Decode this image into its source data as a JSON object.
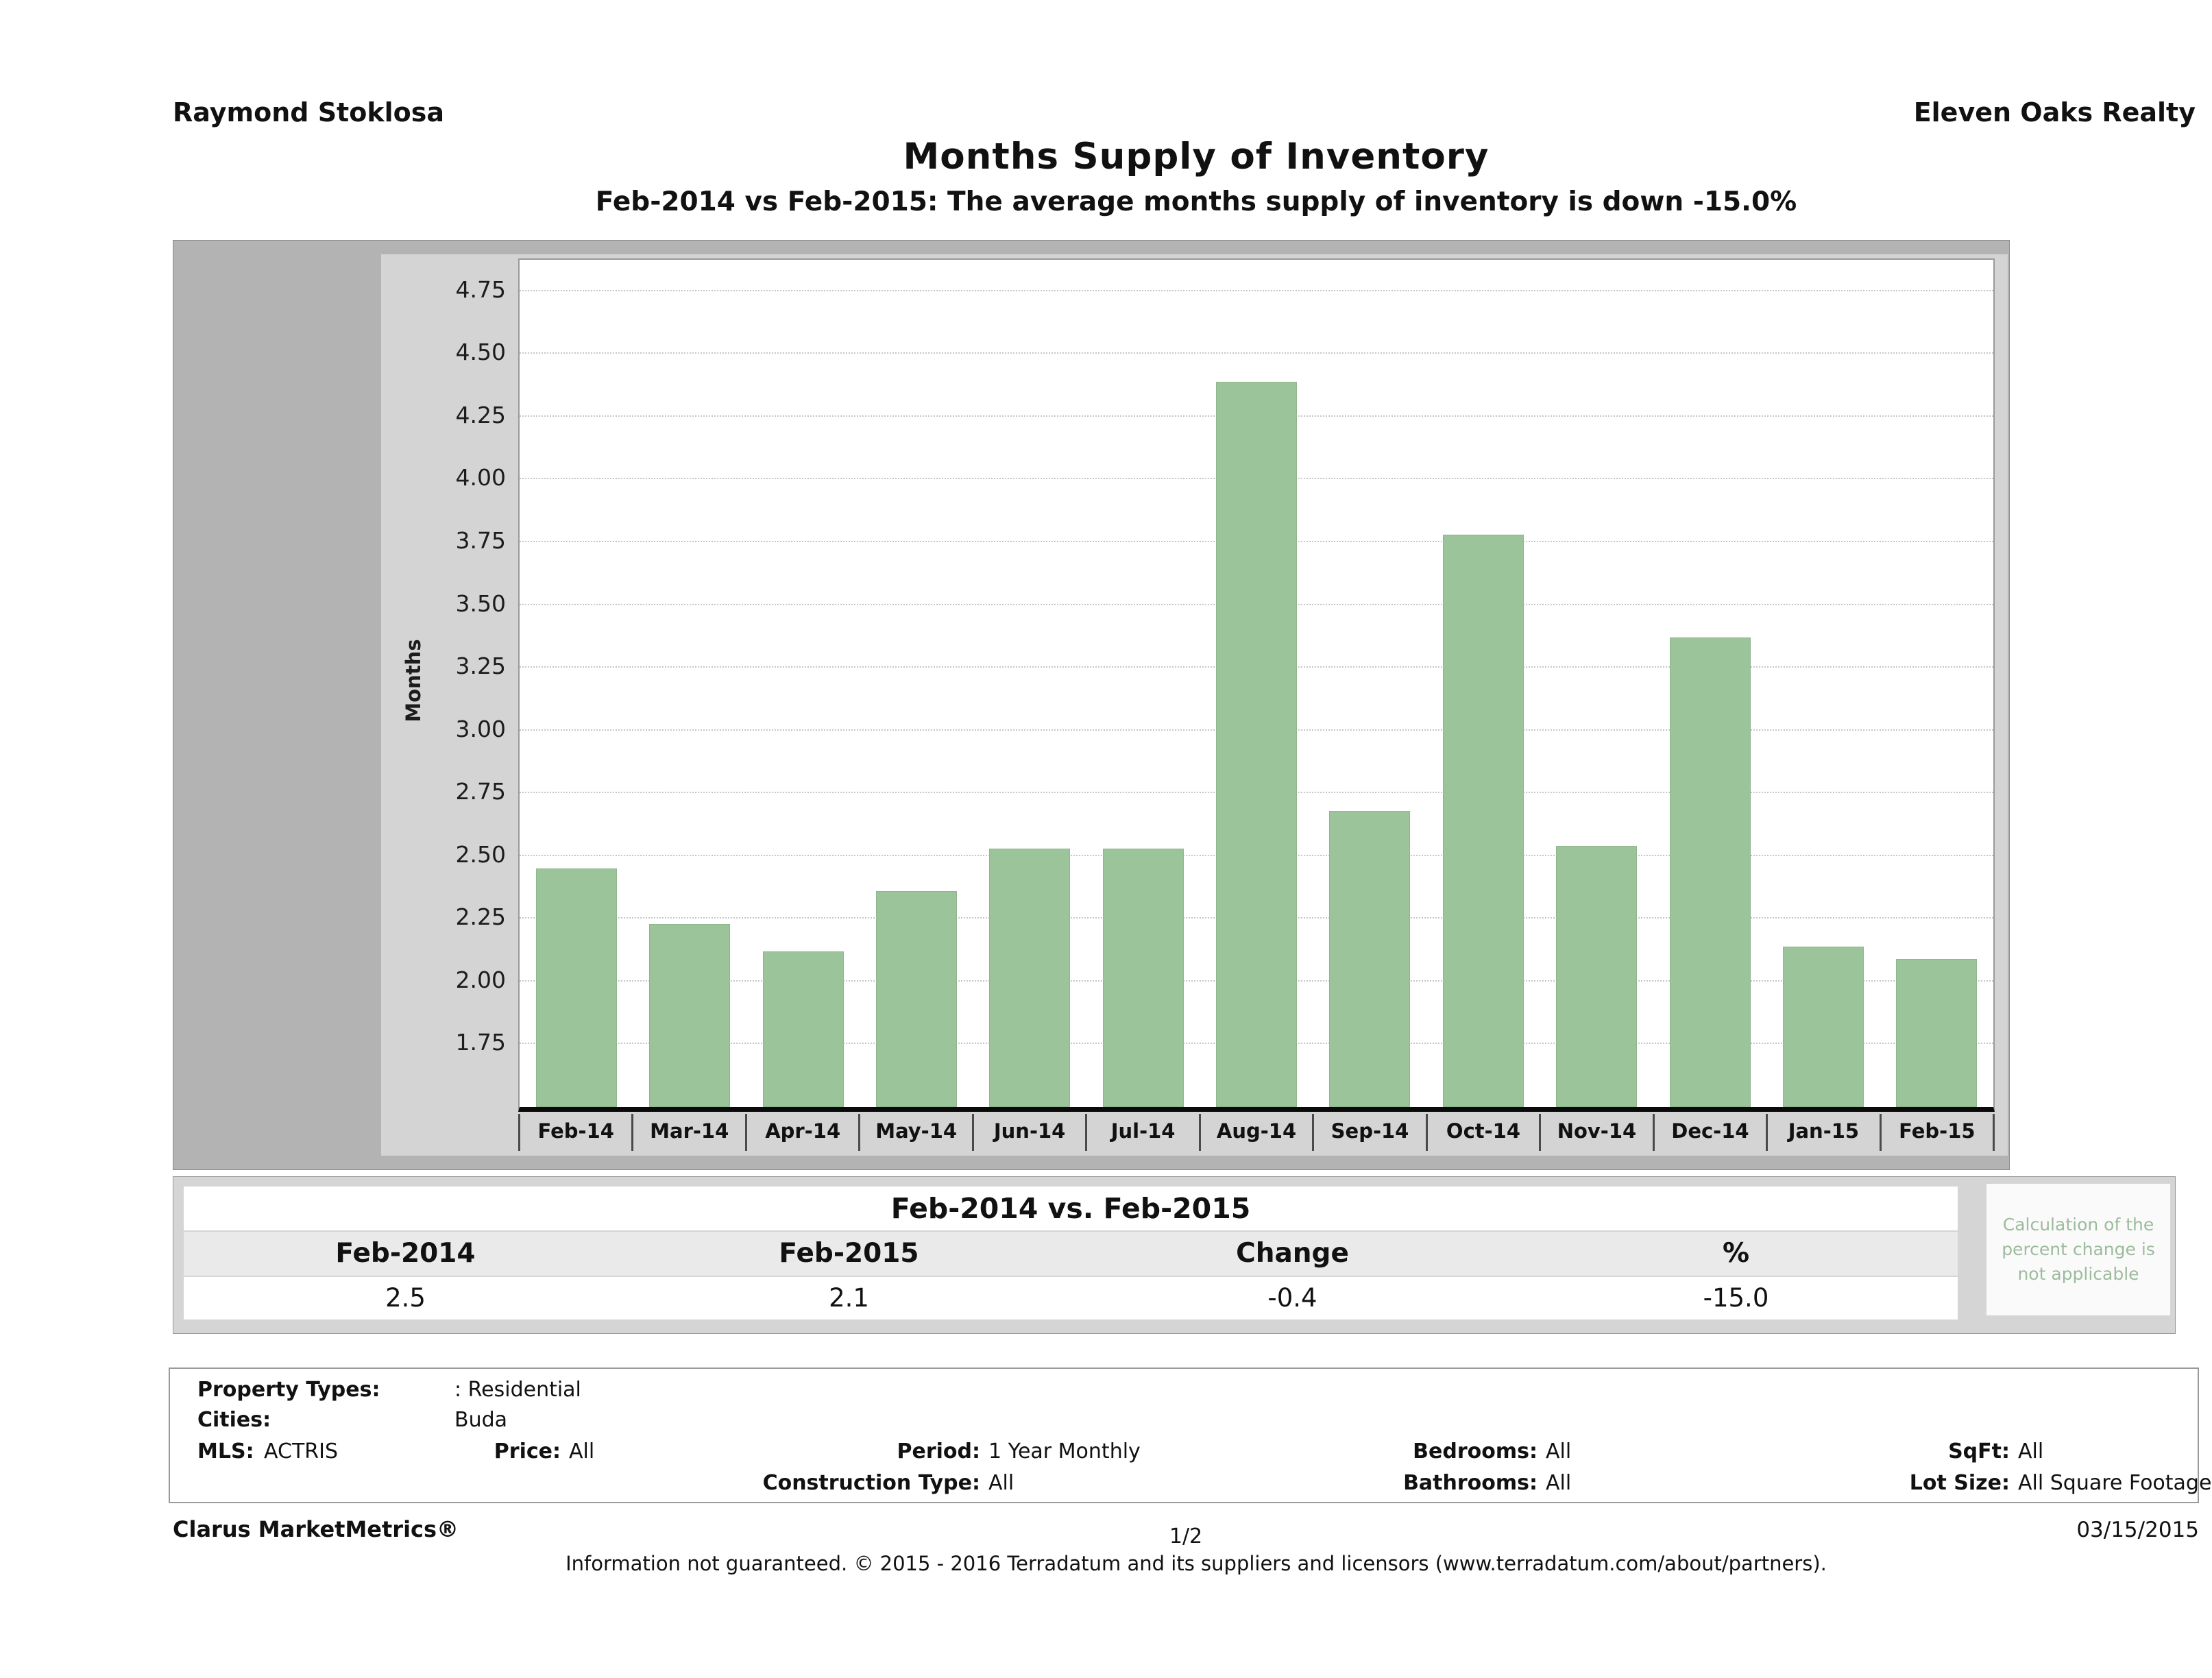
{
  "header": {
    "agent": "Raymond Stoklosa",
    "brokerage": "Eleven Oaks Realty"
  },
  "chart_data": {
    "type": "bar",
    "title": "Months Supply of Inventory",
    "subtitle": "Feb-2014 vs Feb-2015: The average months supply of inventory is down -15.0%",
    "ylabel": "Months",
    "xlabel": "",
    "categories": [
      "Feb-14",
      "Mar-14",
      "Apr-14",
      "May-14",
      "Jun-14",
      "Jul-14",
      "Aug-14",
      "Sep-14",
      "Oct-14",
      "Nov-14",
      "Dec-14",
      "Jan-15",
      "Feb-15"
    ],
    "values": [
      2.45,
      2.23,
      2.12,
      2.36,
      2.53,
      2.53,
      4.39,
      2.68,
      3.78,
      2.54,
      3.37,
      2.14,
      2.09
    ],
    "ylim": [
      1.5,
      4.875
    ],
    "yticks": [
      1.75,
      2.0,
      2.25,
      2.5,
      2.75,
      3.0,
      3.25,
      3.5,
      3.75,
      4.0,
      4.25,
      4.5,
      4.75
    ],
    "bar_color": "#9cc49a",
    "grid": "dotted-horizontal",
    "legend": "none"
  },
  "summary": {
    "title": "Feb-2014 vs. Feb-2015",
    "columns": [
      "Feb-2014",
      "Feb-2015",
      "Change",
      "%"
    ],
    "values": [
      "2.5",
      "2.1",
      "-0.4",
      "-15.0"
    ],
    "note": "Calculation of the percent change is not applicable"
  },
  "filters": {
    "property_types_label": "Property Types:",
    "property_types": ": Residential",
    "cities_label": "Cities:",
    "cities": "Buda",
    "mls_label": "MLS:",
    "mls": "ACTRIS",
    "price_label": "Price:",
    "price": "All",
    "period_label": "Period:",
    "period": "1 Year Monthly",
    "bedrooms_label": "Bedrooms:",
    "bedrooms": "All",
    "sqft_label": "SqFt:",
    "sqft": "All",
    "construction_label": "Construction Type:",
    "construction": "All",
    "bathrooms_label": "Bathrooms:",
    "bathrooms": "All",
    "lot_size_label": "Lot Size:",
    "lot_size": "All Square Footage"
  },
  "footer": {
    "brand": "Clarus MarketMetrics®",
    "page": "1/2",
    "date": "03/15/2015",
    "disclaimer": "Information not guaranteed. © 2015 - 2016 Terradatum and its suppliers and licensors (www.terradatum.com/about/partners)."
  }
}
